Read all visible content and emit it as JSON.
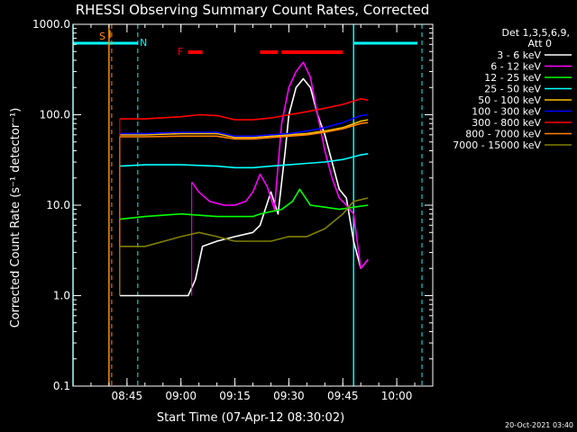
{
  "chart_data": {
    "type": "line",
    "title": "RHESSI Observing Summary Count Rates, Corrected",
    "xlabel": "Start Time (07-Apr-12 08:30:02)",
    "ylabel": "Corrected Count Rate (s⁻¹ detector⁻¹)",
    "yscale": "log",
    "ylim": [
      0.1,
      1000.0
    ],
    "xlim": [
      "08:30",
      "10:10"
    ],
    "x_ticks": [
      "08:45",
      "09:00",
      "09:15",
      "09:30",
      "09:45",
      "10:00"
    ],
    "y_ticks": [
      "0.1",
      "1.0",
      "10.0",
      "100.0",
      "1000.0"
    ],
    "legend_header": [
      "Det 1,3,5,6,9,",
      "Att 0"
    ],
    "legend_placement": "right",
    "footer": "20-Oct-2021 03:40",
    "markers": {
      "S": "S",
      "N": "N",
      "F": "F",
      "saa_color": "#ff8c00",
      "night_color": "#00ffff",
      "flare_color": "#ff0000",
      "night_intervals": [
        [
          "08:30",
          "08:48"
        ],
        [
          "09:48",
          "10:07"
        ]
      ],
      "saa_time": "08:40",
      "flare_intervals": [
        [
          "09:02",
          "09:06"
        ],
        [
          "09:22",
          "09:27"
        ],
        [
          "09:28",
          "09:45"
        ]
      ]
    },
    "series": [
      {
        "name": "3 - 6 keV",
        "color": "#ffffff",
        "x": [
          "08:43",
          "08:46",
          "08:50",
          "09:00",
          "09:02",
          "09:04",
          "09:06",
          "09:10",
          "09:15",
          "09:20",
          "09:22",
          "09:25",
          "09:27",
          "09:29",
          "09:30",
          "09:32",
          "09:34",
          "09:36",
          "09:38",
          "09:40",
          "09:42",
          "09:44",
          "09:46",
          "09:48",
          "09:50",
          "09:52"
        ],
        "y": [
          1.0,
          1.0,
          1.0,
          1.0,
          1.0,
          1.5,
          3.5,
          4.0,
          4.5,
          5.0,
          6.0,
          14.0,
          8.0,
          40.0,
          100.0,
          200.0,
          250.0,
          200.0,
          100.0,
          60.0,
          30.0,
          15.0,
          12.0,
          4.0,
          2.0,
          2.5
        ]
      },
      {
        "name": "6 - 12 keV",
        "color": "#ff00ff",
        "x": [
          "08:43",
          "08:46",
          "08:50",
          "09:00",
          "09:03",
          "09:05",
          "09:08",
          "09:12",
          "09:15",
          "09:18",
          "09:20",
          "09:22",
          "09:24",
          "09:26",
          "09:28",
          "09:30",
          "09:32",
          "09:34",
          "09:36",
          "09:38",
          "09:40",
          "09:42",
          "09:44",
          "09:46",
          "09:48",
          "09:50",
          "09:52"
        ],
        "y": [
          null,
          null,
          null,
          null,
          18.0,
          14.0,
          11.0,
          10.0,
          10.0,
          11.0,
          14.0,
          22.0,
          16.0,
          9.0,
          80.0,
          200.0,
          300.0,
          380.0,
          260.0,
          100.0,
          40.0,
          20.0,
          12.0,
          10.0,
          8.0,
          2.0,
          2.5
        ]
      },
      {
        "name": "12 - 25 keV",
        "color": "#00ff00",
        "x": [
          "08:43",
          "08:50",
          "09:00",
          "09:10",
          "09:15",
          "09:20",
          "09:22",
          "09:25",
          "09:28",
          "09:31",
          "09:33",
          "09:36",
          "09:40",
          "09:44",
          "09:48",
          "09:52"
        ],
        "y": [
          7.0,
          7.5,
          8.0,
          7.5,
          7.5,
          7.5,
          8.0,
          8.5,
          9.0,
          11.0,
          15.0,
          10.0,
          9.5,
          9.0,
          9.5,
          10.0
        ]
      },
      {
        "name": "25 - 50 keV",
        "color": "#00ffff",
        "x": [
          "08:43",
          "08:50",
          "09:00",
          "09:10",
          "09:15",
          "09:20",
          "09:25",
          "09:30",
          "09:35",
          "09:40",
          "09:45",
          "09:50",
          "09:52"
        ],
        "y": [
          27.0,
          28.0,
          28.0,
          27.0,
          26.0,
          26.0,
          27.0,
          28.0,
          29.0,
          30.0,
          32.0,
          36.0,
          37.0
        ]
      },
      {
        "name": "50 - 100 keV",
        "color": "#ffc000",
        "x": [
          "08:43",
          "08:50",
          "09:00",
          "09:10",
          "09:15",
          "09:20",
          "09:25",
          "09:30",
          "09:35",
          "09:40",
          "09:45",
          "09:50",
          "09:52"
        ],
        "y": [
          60.0,
          60.0,
          62.0,
          62.0,
          56.0,
          56.0,
          58.0,
          60.0,
          62.0,
          66.0,
          72.0,
          85.0,
          88.0
        ]
      },
      {
        "name": "100 - 300 keV",
        "color": "#0000ff",
        "x": [
          "08:43",
          "08:50",
          "09:00",
          "09:10",
          "09:15",
          "09:20",
          "09:25",
          "09:30",
          "09:35",
          "09:40",
          "09:45",
          "09:50",
          "09:52"
        ],
        "y": [
          62.0,
          62.0,
          64.0,
          64.0,
          58.0,
          58.0,
          60.0,
          62.0,
          66.0,
          72.0,
          82.0,
          98.0,
          100.0
        ]
      },
      {
        "name": "300 - 800 keV",
        "color": "#ff0000",
        "x": [
          "08:43",
          "08:50",
          "09:00",
          "09:05",
          "09:10",
          "09:15",
          "09:20",
          "09:25",
          "09:30",
          "09:35",
          "09:40",
          "09:45",
          "09:50",
          "09:52"
        ],
        "y": [
          90.0,
          90.0,
          95.0,
          100.0,
          98.0,
          88.0,
          88.0,
          92.0,
          100.0,
          108.0,
          118.0,
          130.0,
          150.0,
          145.0
        ]
      },
      {
        "name": "800 - 7000 keV",
        "color": "#ff8000",
        "x": [
          "08:43",
          "08:50",
          "09:00",
          "09:10",
          "09:15",
          "09:20",
          "09:25",
          "09:30",
          "09:35",
          "09:40",
          "09:45",
          "09:50",
          "09:52"
        ],
        "y": [
          57.0,
          57.0,
          58.0,
          58.0,
          54.0,
          54.0,
          56.0,
          58.0,
          60.0,
          64.0,
          70.0,
          80.0,
          82.0
        ]
      },
      {
        "name": "7000 - 15000 keV",
        "color": "#808000",
        "x": [
          "08:43",
          "08:50",
          "09:00",
          "09:05",
          "09:10",
          "09:15",
          "09:20",
          "09:25",
          "09:30",
          "09:35",
          "09:40",
          "09:45",
          "09:48",
          "09:52"
        ],
        "y": [
          3.5,
          3.5,
          4.5,
          5.0,
          4.5,
          4.0,
          4.0,
          4.0,
          4.5,
          4.5,
          5.5,
          8.0,
          11.0,
          12.0
        ]
      }
    ]
  }
}
